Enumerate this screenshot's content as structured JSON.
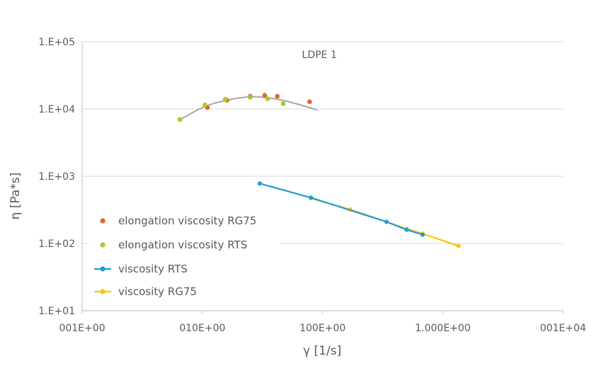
{
  "chart_data": {
    "type": "scatter",
    "title": "LDPE 1",
    "xlabel": "γ [1/s]",
    "ylabel": "η [Pa*s]",
    "xscale": "log",
    "yscale": "log",
    "xlim": [
      1,
      10000
    ],
    "ylim": [
      10,
      100000
    ],
    "x_tick_labels": [
      "001E+00",
      "010E+00",
      "100E+00",
      "1.000E+00",
      "001E+04"
    ],
    "y_tick_labels": [
      "1.E+01",
      "1.E+02",
      "1.E+03",
      "1.E+04",
      "1.E+05"
    ],
    "grid": true,
    "legend": "left",
    "series": [
      {
        "name": "elongation viscosity RG75",
        "kind": "scatter",
        "color": "#E8642C",
        "points": [
          [
            11,
            10500
          ],
          [
            16,
            13500
          ],
          [
            25,
            15500
          ],
          [
            33,
            16000
          ],
          [
            42,
            15500
          ],
          [
            78,
            12800
          ]
        ]
      },
      {
        "name": "elongation viscosity RTS",
        "kind": "scatter",
        "color": "#A9C92A",
        "points": [
          [
            6.5,
            7000
          ],
          [
            10.5,
            11500
          ],
          [
            15.5,
            14000
          ],
          [
            25,
            15000
          ],
          [
            35,
            14200
          ],
          [
            47,
            12000
          ]
        ]
      },
      {
        "name": "viscosity RTS",
        "kind": "line",
        "color": "#1E9DD8",
        "points": [
          [
            30,
            780
          ],
          [
            80,
            480
          ],
          [
            340,
            210
          ],
          [
            500,
            160
          ],
          [
            680,
            135
          ]
        ]
      },
      {
        "name": "viscosity RG75",
        "kind": "line",
        "color": "#FFC20E",
        "points": [
          [
            80,
            470
          ],
          [
            170,
            320
          ],
          [
            340,
            210
          ],
          [
            500,
            165
          ],
          [
            680,
            140
          ],
          [
            1350,
            92
          ]
        ]
      }
    ],
    "trendline": {
      "color": "#A6A6A6",
      "points": [
        [
          6.5,
          6900
        ],
        [
          10,
          10500
        ],
        [
          15,
          13200
        ],
        [
          25,
          15200
        ],
        [
          40,
          14200
        ],
        [
          60,
          12000
        ],
        [
          90,
          9700
        ]
      ]
    }
  }
}
